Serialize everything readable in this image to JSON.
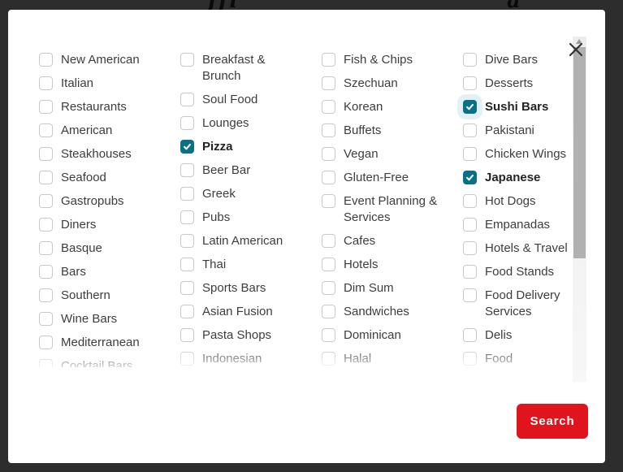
{
  "colors": {
    "checked_accent": "#0a7086",
    "search_button_red": "#e0141c",
    "backdrop": "#2d2d2d",
    "label_text": "#3d3d3d"
  },
  "modal": {
    "close_icon": "x-close",
    "search_button": {
      "label": "Search"
    }
  },
  "categories": {
    "columns": [
      [
        {
          "label": "New American",
          "checked": false
        },
        {
          "label": "Italian",
          "checked": false
        },
        {
          "label": "Restaurants",
          "checked": false
        },
        {
          "label": "American",
          "checked": false
        },
        {
          "label": "Steakhouses",
          "checked": false
        },
        {
          "label": "Seafood",
          "checked": false
        },
        {
          "label": "Gastropubs",
          "checked": false
        },
        {
          "label": "Diners",
          "checked": false
        },
        {
          "label": "Basque",
          "checked": false
        },
        {
          "label": "Bars",
          "checked": false
        },
        {
          "label": "Southern",
          "checked": false
        },
        {
          "label": "Wine Bars",
          "checked": false
        },
        {
          "label": "Mediterranean",
          "checked": false
        },
        {
          "label": "Cocktail Bars",
          "checked": false
        }
      ],
      [
        {
          "label": "Breakfast & Brunch",
          "checked": false
        },
        {
          "label": "Soul Food",
          "checked": false
        },
        {
          "label": "Lounges",
          "checked": false
        },
        {
          "label": "Pizza",
          "checked": true
        },
        {
          "label": "Beer Bar",
          "checked": false
        },
        {
          "label": "Greek",
          "checked": false
        },
        {
          "label": "Pubs",
          "checked": false
        },
        {
          "label": "Latin American",
          "checked": false
        },
        {
          "label": "Thai",
          "checked": false
        },
        {
          "label": "Sports Bars",
          "checked": false
        },
        {
          "label": "Asian Fusion",
          "checked": false
        },
        {
          "label": "Pasta Shops",
          "checked": false
        },
        {
          "label": "Indonesian",
          "checked": false
        }
      ],
      [
        {
          "label": "Fish & Chips",
          "checked": false
        },
        {
          "label": "Szechuan",
          "checked": false
        },
        {
          "label": "Korean",
          "checked": false
        },
        {
          "label": "Buffets",
          "checked": false
        },
        {
          "label": "Vegan",
          "checked": false
        },
        {
          "label": "Gluten-Free",
          "checked": false
        },
        {
          "label": "Event Planning & Services",
          "checked": false
        },
        {
          "label": "Cafes",
          "checked": false
        },
        {
          "label": "Hotels",
          "checked": false
        },
        {
          "label": "Dim Sum",
          "checked": false
        },
        {
          "label": "Sandwiches",
          "checked": false
        },
        {
          "label": "Dominican",
          "checked": false
        },
        {
          "label": "Halal",
          "checked": false
        }
      ],
      [
        {
          "label": "Dive Bars",
          "checked": false
        },
        {
          "label": "Desserts",
          "checked": false
        },
        {
          "label": "Sushi Bars",
          "checked": true,
          "focused": true
        },
        {
          "label": "Pakistani",
          "checked": false
        },
        {
          "label": "Chicken Wings",
          "checked": false
        },
        {
          "label": "Japanese",
          "checked": true
        },
        {
          "label": "Hot Dogs",
          "checked": false
        },
        {
          "label": "Empanadas",
          "checked": false
        },
        {
          "label": "Hotels & Travel",
          "checked": false
        },
        {
          "label": "Food Stands",
          "checked": false
        },
        {
          "label": "Food Delivery Services",
          "checked": false
        },
        {
          "label": "Delis",
          "checked": false
        },
        {
          "label": "Food",
          "checked": false
        }
      ]
    ]
  }
}
